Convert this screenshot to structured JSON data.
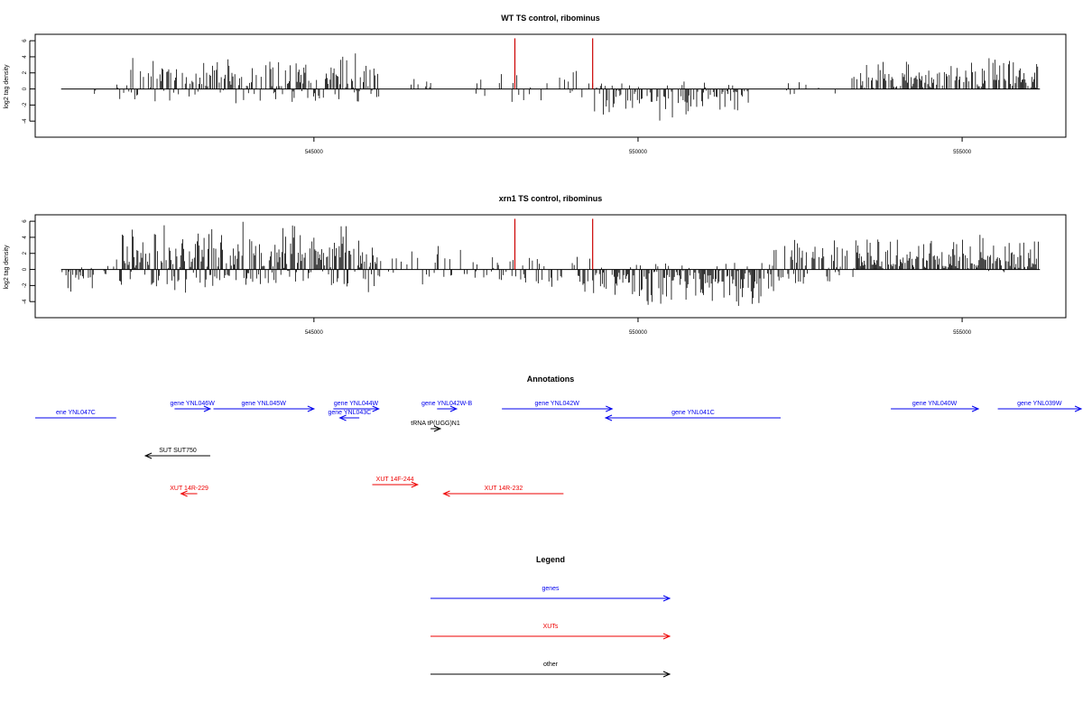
{
  "chart_data": [
    {
      "type": "bar",
      "title": "WT TS control, ribominus",
      "ylabel": "log2 tag density",
      "xlabel": "",
      "xlim": [
        540700,
        556600
      ],
      "ylim": [
        -6,
        6.8
      ],
      "yticks": [
        6,
        4,
        2,
        0,
        -2,
        -4
      ],
      "xticks": [
        545000,
        550000,
        555000
      ],
      "xtick_labels": [
        "545000",
        "550000",
        "555000"
      ],
      "highlight_color": "#cc0000",
      "highlights": [
        {
          "x": 548100,
          "y": 6.3
        },
        {
          "x": 549300,
          "y": 6.3
        }
      ],
      "profile": [
        {
          "from": 541100,
          "to": 541150,
          "min": -2.0,
          "max": 0.8,
          "seed": 3,
          "density": 0.6
        },
        {
          "from": 541600,
          "to": 541700,
          "min": -2.0,
          "max": 0.0,
          "seed": 4,
          "density": 0.5
        },
        {
          "from": 541900,
          "to": 542200,
          "min": -2.5,
          "max": 2.6,
          "seed": 5,
          "density": 0.15
        },
        {
          "from": 542100,
          "to": 546000,
          "min": -2.0,
          "max": 4.8,
          "seed": 11,
          "density": 0.7
        },
        {
          "from": 546500,
          "to": 547000,
          "min": 0.0,
          "max": 1.5,
          "seed": 12,
          "density": 0.1
        },
        {
          "from": 547500,
          "to": 549300,
          "min": -2.0,
          "max": 2.5,
          "seed": 13,
          "density": 0.2
        },
        {
          "from": 549300,
          "to": 551700,
          "min": -4.0,
          "max": 1.5,
          "seed": 14,
          "density": 0.6
        },
        {
          "from": 552200,
          "to": 553200,
          "min": -1.0,
          "max": 1.5,
          "seed": 15,
          "density": 0.2
        },
        {
          "from": 553300,
          "to": 556200,
          "min": 0.0,
          "max": 4.0,
          "seed": 16,
          "density": 0.7
        }
      ]
    },
    {
      "type": "bar",
      "title": "xrn1 TS control, ribominus",
      "ylabel": "log2 tag density",
      "xlabel": "",
      "xlim": [
        540700,
        556600
      ],
      "ylim": [
        -6,
        6.8
      ],
      "yticks": [
        6,
        4,
        2,
        0,
        -2,
        -4
      ],
      "xticks": [
        545000,
        550000,
        555000
      ],
      "xtick_labels": [
        "545000",
        "550000",
        "555000"
      ],
      "highlight_color": "#cc0000",
      "highlights": [
        {
          "x": 548100,
          "y": 6.3
        },
        {
          "x": 549300,
          "y": 6.3
        }
      ],
      "profile": [
        {
          "from": 541100,
          "to": 541600,
          "min": -3.0,
          "max": 0.5,
          "seed": 21,
          "density": 0.7
        },
        {
          "from": 541700,
          "to": 542000,
          "min": -1.0,
          "max": 2.7,
          "seed": 22,
          "density": 0.3
        },
        {
          "from": 542000,
          "to": 546000,
          "min": -3.2,
          "max": 6.3,
          "seed": 23,
          "density": 0.95
        },
        {
          "from": 546000,
          "to": 547500,
          "min": -2.0,
          "max": 3.8,
          "seed": 24,
          "density": 0.35
        },
        {
          "from": 547500,
          "to": 549300,
          "min": -3.0,
          "max": 2.0,
          "seed": 25,
          "density": 0.4
        },
        {
          "from": 549300,
          "to": 552100,
          "min": -5.0,
          "max": 1.0,
          "seed": 26,
          "density": 0.85
        },
        {
          "from": 552100,
          "to": 553400,
          "min": -2.8,
          "max": 4.8,
          "seed": 27,
          "density": 0.6
        },
        {
          "from": 553400,
          "to": 556200,
          "min": -0.5,
          "max": 4.6,
          "seed": 28,
          "density": 0.85
        }
      ]
    }
  ],
  "annotations": {
    "title": "Annotations",
    "items": [
      {
        "label": "ene YNL047C",
        "from": 540700,
        "to": 541950,
        "dir": "none",
        "kind": "gene",
        "row": 1
      },
      {
        "label": "gene YNL046W",
        "from": 542850,
        "to": 543400,
        "dir": "right",
        "kind": "gene",
        "row": 0
      },
      {
        "label": "gene YNL045W",
        "from": 543450,
        "to": 545000,
        "dir": "right",
        "kind": "gene",
        "row": 0
      },
      {
        "label": "gene YNL044W",
        "from": 545300,
        "to": 546000,
        "dir": "right",
        "kind": "gene",
        "row": 0
      },
      {
        "label": "gene YNL043C",
        "from": 545400,
        "to": 545700,
        "dir": "left",
        "kind": "gene",
        "row": 1
      },
      {
        "label": "gene YNL042W-B",
        "from": 546900,
        "to": 547200,
        "dir": "right",
        "kind": "gene",
        "row": 0
      },
      {
        "label": "gene YNL042W",
        "from": 547900,
        "to": 549600,
        "dir": "right",
        "kind": "gene",
        "row": 0
      },
      {
        "label": "gene YNL041C",
        "from": 549500,
        "to": 552200,
        "dir": "left",
        "kind": "gene",
        "row": 1
      },
      {
        "label": "gene YNL040W",
        "from": 553900,
        "to": 555250,
        "dir": "right",
        "kind": "gene",
        "row": 0
      },
      {
        "label": "gene YNL039W",
        "from": 555550,
        "to": 556950,
        "dir": "right",
        "kind": "gene",
        "row": 0
      },
      {
        "label": "tRNA tP(UGG)N1",
        "from": 546800,
        "to": 546950,
        "dir": "right",
        "kind": "other",
        "row": 2
      },
      {
        "label": "SUT SUT750",
        "from": 542400,
        "to": 543400,
        "dir": "left",
        "kind": "other",
        "row": 3
      },
      {
        "label": "XUT 14F-244",
        "from": 545900,
        "to": 546600,
        "dir": "right",
        "kind": "xut",
        "row": 4
      },
      {
        "label": "XUT 14R-229",
        "from": 542950,
        "to": 543200,
        "dir": "left",
        "kind": "xut",
        "row": 5
      },
      {
        "label": "XUT 14R-232",
        "from": 547000,
        "to": 548850,
        "dir": "left",
        "kind": "xut",
        "row": 5
      }
    ]
  },
  "legend": {
    "title": "Legend",
    "items": [
      {
        "label": "genes",
        "kind": "gene"
      },
      {
        "label": "XUTs",
        "kind": "xut"
      },
      {
        "label": "other",
        "kind": "other"
      }
    ]
  },
  "colors": {
    "gene": "#0000ee",
    "xut": "#ee0000",
    "other": "#000000"
  }
}
